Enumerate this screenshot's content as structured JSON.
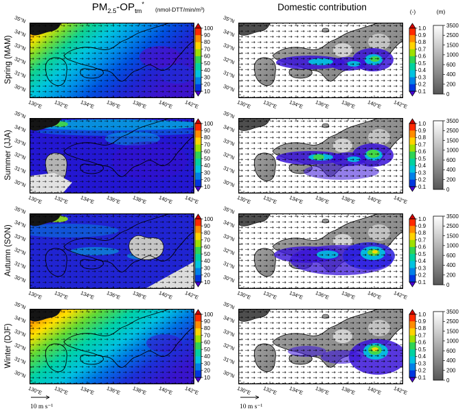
{
  "header": {
    "left_title": {
      "pm": "PM",
      "pm_sub": "2.5",
      "op": "-OP",
      "op_sub": "tm",
      "op_sup": "*"
    },
    "left_units": "(nmol-DTT/min/m³)",
    "right_title": "Domestic contribution",
    "frac_unit": "(-)",
    "elev_unit": "(m)"
  },
  "rows": [
    {
      "label": "Spring (MAM)"
    },
    {
      "label": "Summer (JJA)"
    },
    {
      "label": "Autumn (SON)"
    },
    {
      "label": "Winter (DJF)"
    }
  ],
  "axes": {
    "lat": [
      "35°N",
      "34°N",
      "33°N",
      "32°N",
      "31°N",
      "30°N"
    ],
    "lon": [
      "130°E",
      "132°E",
      "134°E",
      "136°E",
      "138°E",
      "140°E",
      "142°E"
    ]
  },
  "colorbars": {
    "op": {
      "ticks": [
        "100",
        "90",
        "80",
        "70",
        "60",
        "50",
        "40",
        "30",
        "20",
        "10"
      ],
      "colors": [
        "#ff2a00",
        "#ff8c00",
        "#ffd300",
        "#9fe000",
        "#2fd455",
        "#00d2a0",
        "#00c3e0",
        "#0080e8",
        "#0037e0"
      ],
      "tip_high": "#d40000",
      "tip_low": "#4b00d2"
    },
    "fraction": {
      "ticks": [
        "1.0",
        "0.9",
        "0.8",
        "0.7",
        "0.6",
        "0.5",
        "0.4",
        "0.3",
        "0.2",
        "0.1"
      ],
      "colors": [
        "#ff2a00",
        "#ff8c00",
        "#ffd300",
        "#9fe000",
        "#2fd455",
        "#00d2a0",
        "#00c3e0",
        "#0080e8",
        "#0037e0"
      ],
      "tip_high": "#d40000",
      "tip_low": "#4b00d2"
    },
    "elevation": {
      "ticks": [
        "3500",
        "2500",
        "1500",
        "1000",
        "600",
        "400",
        "200",
        "0"
      ],
      "top_color": "#ffffff",
      "bottom_color": "#565656"
    }
  },
  "wind_scale": {
    "label": "10 m s⁻¹"
  },
  "chart_data": {
    "type": "heatmap",
    "subtype": "multi-panel geographic maps of Japan with overlaid wind vectors",
    "grid": "4 rows (seasons) x 2 columns (variables)",
    "region": {
      "lon_ticks_deg_E": [
        130,
        132,
        134,
        136,
        138,
        140,
        142
      ],
      "lat_ticks_deg_N": [
        35,
        34,
        33,
        32,
        31,
        30
      ]
    },
    "row_seasons": [
      "Spring (MAM)",
      "Summer (JJA)",
      "Autumn (SON)",
      "Winter (DJF)"
    ],
    "columns": [
      {
        "title": "PM2.5-OPtm*",
        "units": "nmol-DTT/min/m³",
        "colorbar_levels": [
          10,
          20,
          30,
          40,
          50,
          60,
          70,
          80,
          90,
          100
        ],
        "palette": "rainbow, violet=low red=high"
      },
      {
        "title": "Domestic contribution",
        "units": "-",
        "colorbar_levels": [
          0.1,
          0.2,
          0.3,
          0.4,
          0.5,
          0.6,
          0.7,
          0.8,
          0.9,
          1.0
        ],
        "palette": "rainbow over grayscale elevation basemap",
        "secondary_colorbar": {
          "units": "m",
          "levels": [
            0,
            200,
            400,
            600,
            1000,
            1500,
            2500,
            3500
          ],
          "palette": "grayscale elevation"
        }
      }
    ],
    "wind_vector_scale": "10 m s⁻¹",
    "panel_summaries": [
      "Spring OP: 70-100 northwest (continental outflow), decreasing southeast to 10-30 over Pacific; 10-20 minimum over Kanto",
      "Summer OP: mostly 10-30; small 70-100 patch far northwest corner; 30-40 cyan band along north edge; gray masked area near Kyushu",
      "Autumn OP: mostly 10-30; 40-90 northwest corner; gray masked patches over central Honshu and southeast ocean",
      "Winter OP: 80-100 northwest, 40-60 over western Japan, 10-30 over eastern Japan and Pacific",
      "Spring domestic contribution: 0.1-0.3 over land belt, 0.4-0.6 cores over Seto inland area and Kanto",
      "Summer domestic contribution: 0.1-0.3 over land extending offshore south coast, 0.4-0.6 cores Kanto and central Honshu",
      "Autumn domestic contribution: widespread 0.1-0.3 over land and adjacent Pacific, 0.4-0.8 core near Kanto",
      "Winter domestic contribution: 0.1-0.3 plume southeast of Kanto over ocean with 0.4-0.8 core; small patches over Seto area"
    ]
  }
}
